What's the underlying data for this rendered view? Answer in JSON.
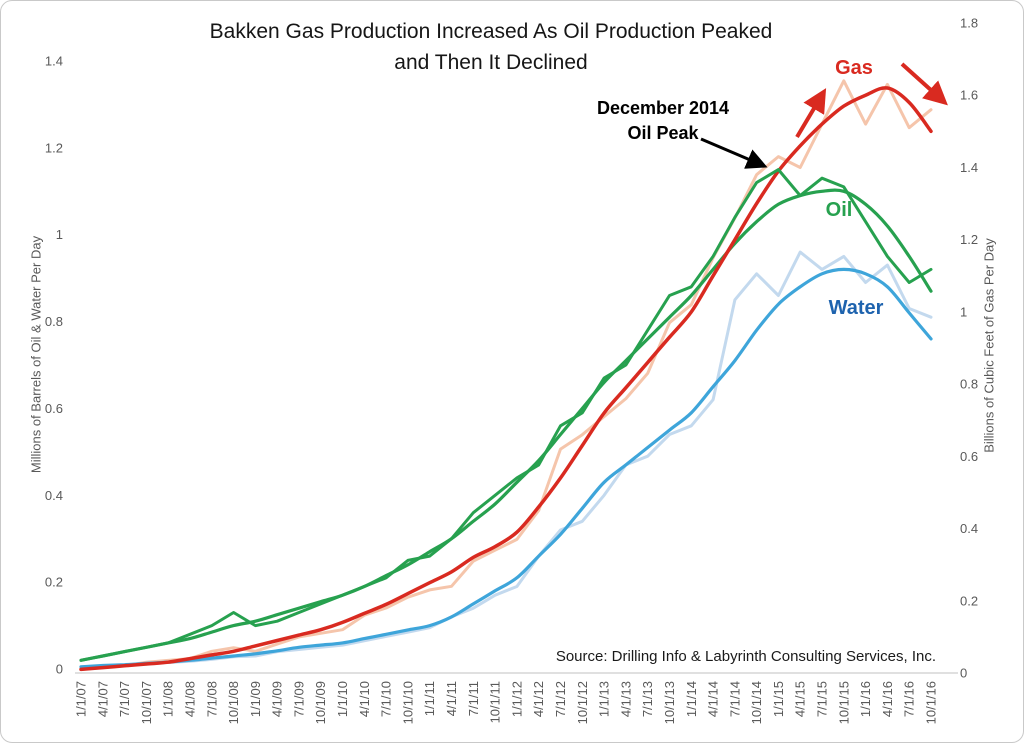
{
  "title": {
    "line1": "Bakken Gas Production Increased As Oil Production Peaked",
    "line2": "and Then It Declined"
  },
  "annotation": {
    "line1": "December 2014",
    "line2": "Oil Peak"
  },
  "series_labels": {
    "gas": "Gas",
    "oil": "Oil",
    "water": "Water"
  },
  "source": "Source: Drilling Info & Labyrinth Consulting Services, Inc.",
  "colors": {
    "gas_line": "#d92a20",
    "gas_monthly": "#f5c5ab",
    "oil_line": "#27a14f",
    "water_line": "#3ea5da",
    "water_monthly": "#c3d9ee",
    "water_label": "#1e63ae",
    "axis_text": "#595959",
    "axis_line": "#d6d6d6",
    "annotation_text": "#000000"
  },
  "chart_data": {
    "type": "line",
    "title": "Bakken Gas Production Increased As Oil Production Peaked and Then It Declined",
    "x_labels": [
      "1/1/07",
      "4/1/07",
      "7/1/07",
      "10/1/07",
      "1/1/08",
      "4/1/08",
      "7/1/08",
      "10/1/08",
      "1/1/09",
      "4/1/09",
      "7/1/09",
      "10/1/09",
      "1/1/10",
      "4/1/10",
      "7/1/10",
      "10/1/10",
      "1/1/11",
      "4/1/11",
      "7/1/11",
      "10/1/11",
      "1/1/12",
      "4/1/12",
      "7/1/12",
      "10/1/12",
      "1/1/13",
      "4/1/13",
      "7/1/13",
      "10/1/13",
      "1/1/14",
      "4/1/14",
      "7/1/14",
      "10/1/14",
      "1/1/15",
      "4/1/15",
      "7/1/15",
      "10/1/15",
      "1/1/16",
      "4/1/16",
      "7/1/16",
      "10/1/16"
    ],
    "left_axis": {
      "label": "Millions of Barrels of Oil & Water Per Day",
      "ticks": [
        "0",
        "0.2",
        "0.4",
        "0.6",
        "0.8",
        "1",
        "1.2",
        "1.4"
      ],
      "range": [
        0,
        1.4
      ]
    },
    "right_axis": {
      "label": "Billions of Cubic Feet of Gas Per Day",
      "ticks": [
        "0",
        "0.2",
        "0.4",
        "0.6",
        "0.8",
        "1",
        "1.2",
        "1.4",
        "1.6",
        "1.8"
      ],
      "range": [
        0,
        1.8
      ]
    },
    "legend_position": "labels-on-chart",
    "grid": false,
    "series": [
      {
        "name": "Water monthly",
        "axis": "left",
        "style": "jagged",
        "color": "#c3d9ee",
        "width": 3,
        "values": [
          0.005,
          0.007,
          0.009,
          0.012,
          0.015,
          0.018,
          0.022,
          0.028,
          0.03,
          0.04,
          0.045,
          0.05,
          0.055,
          0.065,
          0.075,
          0.085,
          0.095,
          0.12,
          0.14,
          0.17,
          0.19,
          0.26,
          0.32,
          0.34,
          0.4,
          0.47,
          0.49,
          0.54,
          0.56,
          0.62,
          0.85,
          0.91,
          0.86,
          0.96,
          0.92,
          0.95,
          0.89,
          0.93,
          0.83,
          0.81
        ]
      },
      {
        "name": "Gas monthly",
        "axis": "right",
        "style": "jagged",
        "color": "#f5c5ab",
        "width": 3,
        "values": [
          0.01,
          0.015,
          0.02,
          0.03,
          0.035,
          0.04,
          0.06,
          0.07,
          0.06,
          0.08,
          0.1,
          0.11,
          0.12,
          0.16,
          0.18,
          0.21,
          0.23,
          0.24,
          0.31,
          0.34,
          0.37,
          0.45,
          0.62,
          0.66,
          0.71,
          0.76,
          0.83,
          0.97,
          1.02,
          1.15,
          1.26,
          1.38,
          1.43,
          1.4,
          1.52,
          1.64,
          1.52,
          1.63,
          1.51,
          1.56
        ]
      },
      {
        "name": "Water trend",
        "axis": "left",
        "style": "smooth",
        "color": "#3ea5da",
        "width": 3.2,
        "values": [
          0.005,
          0.008,
          0.01,
          0.013,
          0.016,
          0.02,
          0.025,
          0.03,
          0.035,
          0.042,
          0.05,
          0.055,
          0.06,
          0.07,
          0.08,
          0.09,
          0.1,
          0.12,
          0.15,
          0.18,
          0.21,
          0.26,
          0.31,
          0.37,
          0.43,
          0.47,
          0.51,
          0.55,
          0.59,
          0.65,
          0.71,
          0.78,
          0.84,
          0.88,
          0.91,
          0.92,
          0.91,
          0.88,
          0.82,
          0.76
        ]
      },
      {
        "name": "Oil trend",
        "axis": "left",
        "style": "smooth",
        "color": "#27a14f",
        "width": 3.2,
        "values": [
          0.02,
          0.03,
          0.04,
          0.05,
          0.06,
          0.07,
          0.085,
          0.1,
          0.11,
          0.125,
          0.14,
          0.155,
          0.17,
          0.19,
          0.215,
          0.24,
          0.27,
          0.3,
          0.34,
          0.38,
          0.43,
          0.48,
          0.54,
          0.6,
          0.66,
          0.71,
          0.76,
          0.81,
          0.86,
          0.92,
          0.98,
          1.03,
          1.07,
          1.09,
          1.1,
          1.1,
          1.07,
          1.02,
          0.95,
          0.87
        ]
      },
      {
        "name": "Gas trend",
        "axis": "right",
        "style": "smooth",
        "color": "#d92a20",
        "width": 3.5,
        "values": [
          0.01,
          0.015,
          0.02,
          0.025,
          0.03,
          0.04,
          0.05,
          0.06,
          0.075,
          0.09,
          0.105,
          0.12,
          0.14,
          0.165,
          0.19,
          0.22,
          0.25,
          0.28,
          0.32,
          0.35,
          0.39,
          0.46,
          0.54,
          0.63,
          0.72,
          0.79,
          0.86,
          0.93,
          1.0,
          1.1,
          1.2,
          1.3,
          1.39,
          1.46,
          1.52,
          1.57,
          1.6,
          1.62,
          1.58,
          1.5
        ]
      },
      {
        "name": "Oil monthly",
        "axis": "left",
        "style": "jagged",
        "color": "#27a14f",
        "width": 3,
        "values": [
          0.02,
          0.03,
          0.04,
          0.05,
          0.06,
          0.08,
          0.1,
          0.13,
          0.1,
          0.11,
          0.13,
          0.15,
          0.17,
          0.19,
          0.21,
          0.25,
          0.26,
          0.3,
          0.36,
          0.4,
          0.44,
          0.47,
          0.56,
          0.59,
          0.67,
          0.7,
          0.78,
          0.86,
          0.88,
          0.95,
          1.04,
          1.12,
          1.15,
          1.09,
          1.13,
          1.11,
          1.03,
          0.95,
          0.89,
          0.92
        ]
      }
    ],
    "annotations": [
      {
        "text": "December 2014 Oil Peak",
        "points_to": "10/1/14 - 1/1/15 oil peak, 1.15 million barrels per day"
      },
      {
        "text": "Gas",
        "meaning": "rising then declining gas trend, peak about 1.62 Bcf/d in 2016"
      },
      {
        "text": "Water",
        "meaning": "water curve peak about 0.92 million barrels per day late 2015"
      }
    ]
  }
}
